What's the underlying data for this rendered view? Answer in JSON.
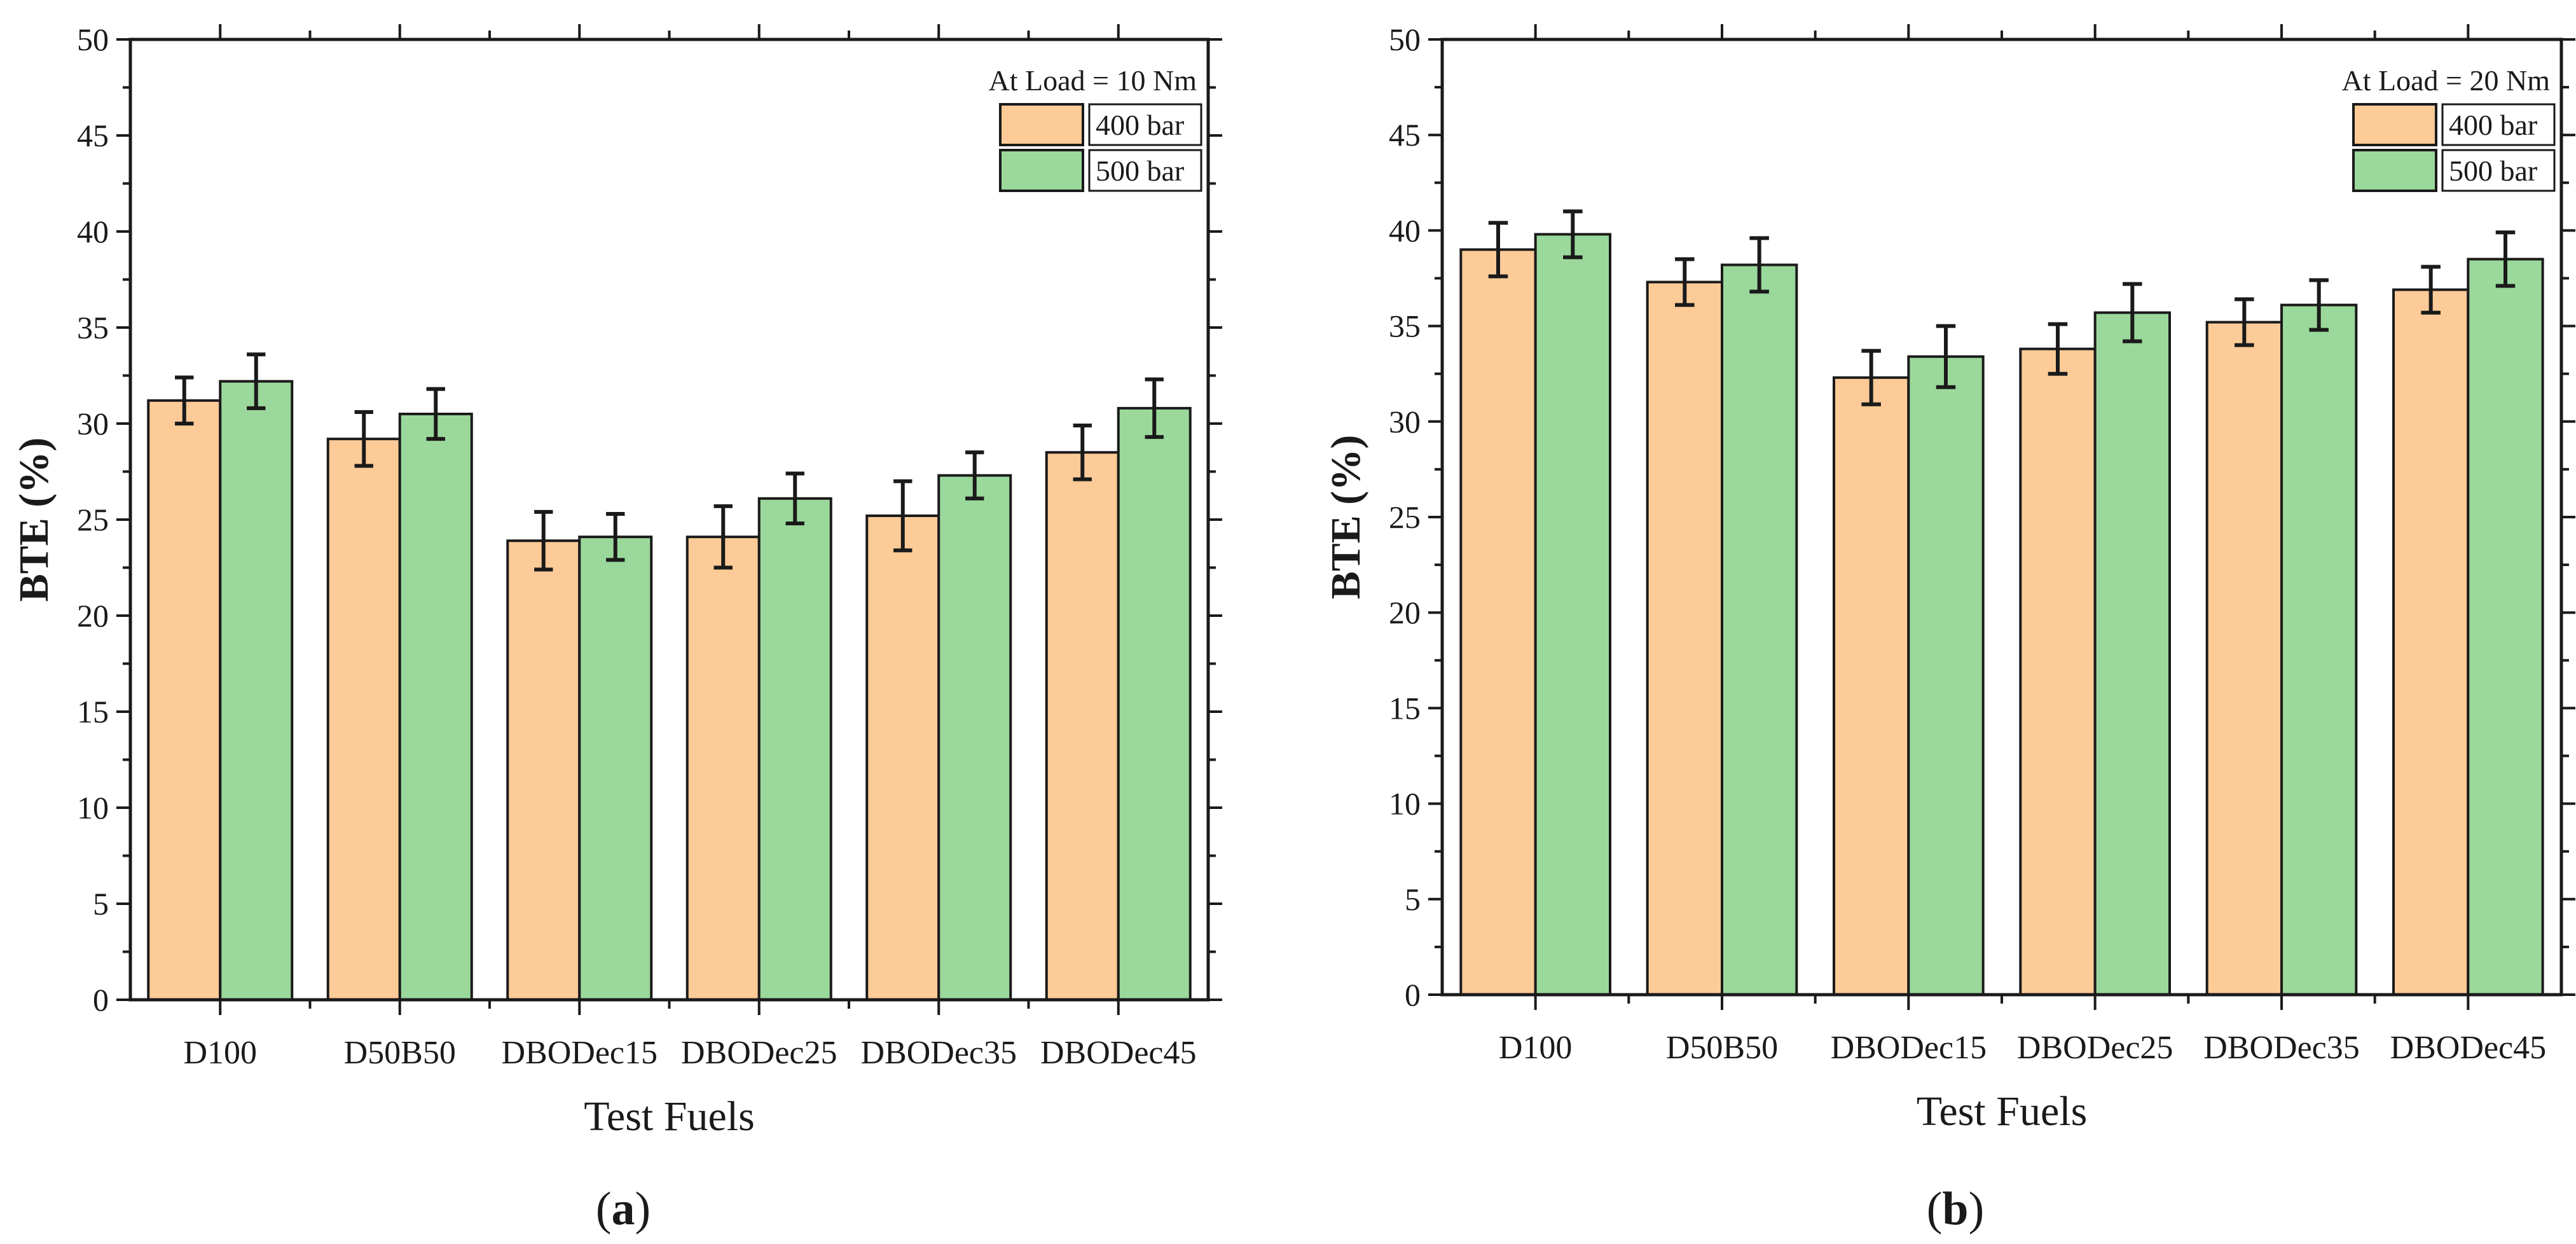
{
  "colors": {
    "series_400": "#fdcb97",
    "series_500": "#9bd89b",
    "ink": "#1a1a1a"
  },
  "chart_data": [
    {
      "type": "bar",
      "panel_label": "a",
      "annotation": "At Load = 10 Nm",
      "xlabel": "Test Fuels",
      "ylabel": "BTE (%)",
      "ylim": [
        0,
        50
      ],
      "yticks": [
        "0",
        "5",
        "10",
        "15",
        "20",
        "25",
        "30",
        "35",
        "40",
        "45",
        "50"
      ],
      "legend_position": "top-right",
      "categories": [
        "D100",
        "D50B50",
        "DBODec15",
        "DBODec25",
        "DBODec35",
        "DBODec45"
      ],
      "series": [
        {
          "name": "400 bar",
          "values": [
            31.2,
            29.2,
            23.9,
            24.1,
            25.2,
            28.5
          ],
          "errors": [
            1.2,
            1.4,
            1.5,
            1.6,
            1.8,
            1.4
          ]
        },
        {
          "name": "500 bar",
          "values": [
            32.2,
            30.5,
            24.1,
            26.1,
            27.3,
            30.8
          ],
          "errors": [
            1.4,
            1.3,
            1.2,
            1.3,
            1.2,
            1.5
          ]
        }
      ]
    },
    {
      "type": "bar",
      "panel_label": "b",
      "annotation": "At Load = 20 Nm",
      "xlabel": "Test Fuels",
      "ylabel": "BTE (%)",
      "ylim": [
        0,
        50
      ],
      "yticks": [
        "0",
        "5",
        "10",
        "15",
        "20",
        "25",
        "30",
        "35",
        "40",
        "45",
        "50"
      ],
      "legend_position": "top-right",
      "categories": [
        "D100",
        "D50B50",
        "DBODec15",
        "DBODec25",
        "DBODec35",
        "DBODec45"
      ],
      "series": [
        {
          "name": "400 bar",
          "values": [
            39.0,
            37.3,
            32.3,
            33.8,
            35.2,
            36.9
          ],
          "errors": [
            1.4,
            1.2,
            1.4,
            1.3,
            1.2,
            1.2
          ]
        },
        {
          "name": "500 bar",
          "values": [
            39.8,
            38.2,
            33.4,
            35.7,
            36.1,
            38.5
          ],
          "errors": [
            1.2,
            1.4,
            1.6,
            1.5,
            1.3,
            1.4
          ]
        }
      ]
    }
  ]
}
